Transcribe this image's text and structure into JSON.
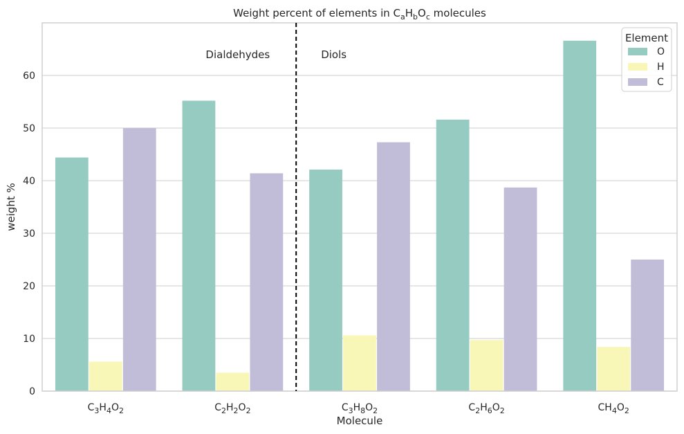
{
  "chart_data": {
    "type": "bar",
    "title": "Weight percent of elements in CₐHᵦOᶜ molecules",
    "title_parts": [
      {
        "t": "Weight percent of elements in ",
        "sub": false
      },
      {
        "t": "C",
        "sub": false
      },
      {
        "t": "a",
        "sub": true
      },
      {
        "t": "H",
        "sub": false
      },
      {
        "t": "b",
        "sub": true
      },
      {
        "t": "O",
        "sub": false
      },
      {
        "t": "c",
        "sub": true
      },
      {
        "t": " molecules",
        "sub": false
      }
    ],
    "xlabel": "Molecule",
    "ylabel": "weight %",
    "ylim": [
      0,
      70
    ],
    "yticks": [
      0,
      10,
      20,
      30,
      40,
      50,
      60
    ],
    "grid": "y",
    "categories": [
      "C3H4O2",
      "C2H2O2",
      "C3H8O2",
      "C2H6O2",
      "CH4O2"
    ],
    "category_labels": [
      [
        {
          "t": "C",
          "sub": false
        },
        {
          "t": "3",
          "sub": true
        },
        {
          "t": "H",
          "sub": false
        },
        {
          "t": "4",
          "sub": true
        },
        {
          "t": "O",
          "sub": false
        },
        {
          "t": "2",
          "sub": true
        }
      ],
      [
        {
          "t": "C",
          "sub": false
        },
        {
          "t": "2",
          "sub": true
        },
        {
          "t": "H",
          "sub": false
        },
        {
          "t": "2",
          "sub": true
        },
        {
          "t": "O",
          "sub": false
        },
        {
          "t": "2",
          "sub": true
        }
      ],
      [
        {
          "t": "C",
          "sub": false
        },
        {
          "t": "3",
          "sub": true
        },
        {
          "t": "H",
          "sub": false
        },
        {
          "t": "8",
          "sub": true
        },
        {
          "t": "O",
          "sub": false
        },
        {
          "t": "2",
          "sub": true
        }
      ],
      [
        {
          "t": "C",
          "sub": false
        },
        {
          "t": "2",
          "sub": true
        },
        {
          "t": "H",
          "sub": false
        },
        {
          "t": "6",
          "sub": true
        },
        {
          "t": "O",
          "sub": false
        },
        {
          "t": "2",
          "sub": true
        }
      ],
      [
        {
          "t": "C",
          "sub": false
        },
        {
          "t": "H",
          "sub": false
        },
        {
          "t": "4",
          "sub": true
        },
        {
          "t": "O",
          "sub": false
        },
        {
          "t": "2",
          "sub": true
        }
      ]
    ],
    "series": [
      {
        "name": "O",
        "color": "#95cbc0",
        "values": [
          44.4,
          55.2,
          42.1,
          51.6,
          66.6
        ]
      },
      {
        "name": "H",
        "color": "#f8f7b8",
        "values": [
          5.6,
          3.5,
          10.6,
          9.7,
          8.4
        ]
      },
      {
        "name": "C",
        "color": "#c1bdd8",
        "values": [
          50.0,
          41.4,
          47.3,
          38.7,
          25.0
        ]
      }
    ],
    "legend": {
      "title": "Element",
      "position": "top-right"
    },
    "annotations": [
      {
        "text": "Dialdehydes",
        "side": "left"
      },
      {
        "text": "Diols",
        "side": "right"
      }
    ],
    "divider": {
      "between": [
        "C2H2O2",
        "C3H8O2"
      ],
      "style": "dashed",
      "color": "#000000"
    }
  }
}
